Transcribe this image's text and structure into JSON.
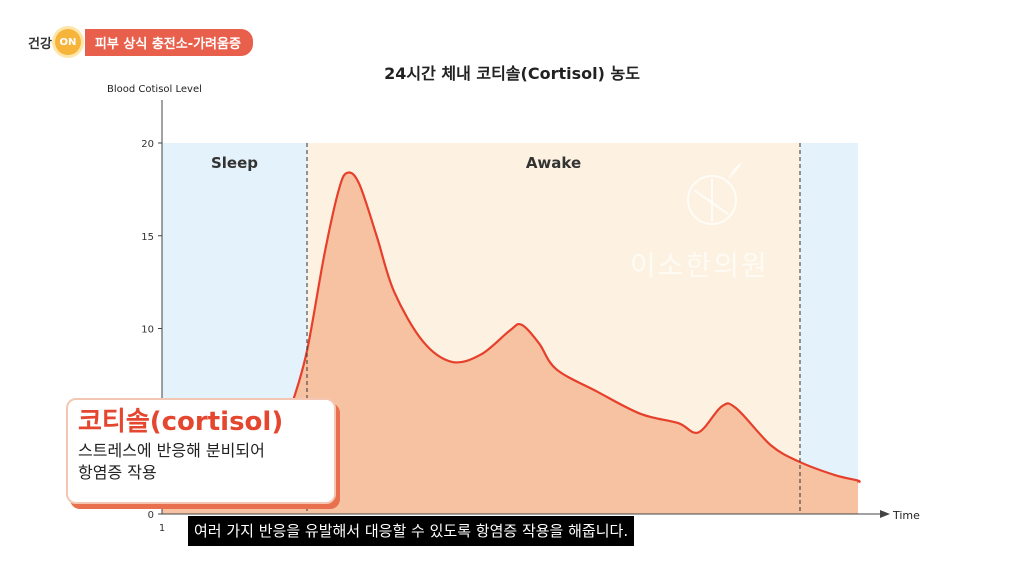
{
  "header": {
    "prefix": "건강",
    "on_label": "ON",
    "title": "피부 상식 충전소-가려움증"
  },
  "chart_data": {
    "type": "area",
    "title": "24시간 체내 코티솔(Cortisol) 농도",
    "ylabel": "Blood Cotisol Level",
    "xlabel": "Time",
    "ylim": [
      0,
      20
    ],
    "yticks": [
      "0",
      "5",
      "10",
      "15",
      "20"
    ],
    "xticks": [
      "1"
    ],
    "xlim": [
      0,
      24
    ],
    "regions": [
      {
        "label": "Sleep",
        "start": 0,
        "end": 5
      },
      {
        "label": "Awake",
        "start": 5,
        "end": 22
      },
      {
        "label": "",
        "start": 22,
        "end": 24
      }
    ],
    "series": [
      {
        "values": [
          [
            0,
            1.5
          ],
          [
            2,
            1.2
          ],
          [
            4,
            3.5
          ],
          [
            4.5,
            6.0
          ],
          [
            5,
            8.8
          ],
          [
            5.6,
            14.0
          ],
          [
            6.1,
            17.5
          ],
          [
            6.4,
            18.4
          ],
          [
            6.8,
            17.8
          ],
          [
            7.4,
            15.0
          ],
          [
            8,
            12.0
          ],
          [
            9,
            9.3
          ],
          [
            10,
            8.2
          ],
          [
            11,
            8.6
          ],
          [
            12,
            9.9
          ],
          [
            12.4,
            10.2
          ],
          [
            13,
            9.2
          ],
          [
            13.6,
            7.8
          ],
          [
            15,
            6.6
          ],
          [
            16.5,
            5.4
          ],
          [
            17.8,
            4.9
          ],
          [
            18.5,
            4.4
          ],
          [
            19.3,
            5.8
          ],
          [
            19.8,
            5.7
          ],
          [
            21,
            3.7
          ],
          [
            22,
            2.8
          ],
          [
            23.2,
            2.1
          ],
          [
            24,
            1.8
          ],
          [
            24.8,
            1.7
          ]
        ]
      }
    ],
    "colors": {
      "sleep_band": "#e4f2fb",
      "awake_band": "#fdf2e1",
      "line": "#e63f2b",
      "fill": "#f6c2a1"
    }
  },
  "info_box": {
    "heading": "코티솔(cortisol)",
    "line1": "스트레스에 반응해 분비되어",
    "line2": "항염증 작용"
  },
  "subtitle": "여러 가지 반응을 유발해서 대응할 수 있도록 항염증 작용을 해줍니다.",
  "watermark": "이소한의원"
}
